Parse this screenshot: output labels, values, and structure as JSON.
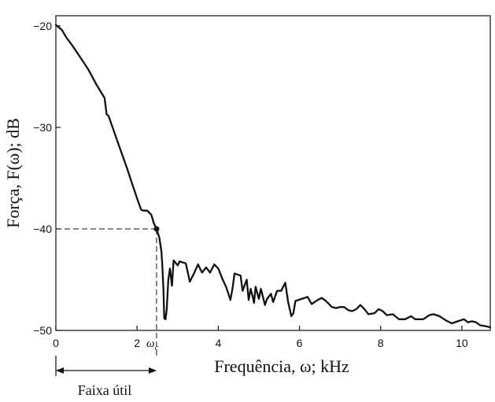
{
  "chart_data": {
    "type": "line",
    "xlabel": "Frequência, ω; kHz",
    "ylabel": "Força, F(ω); dB",
    "xlim": [
      0,
      10.7
    ],
    "ylim": [
      -50,
      -19
    ],
    "x_ticks": [
      0,
      2,
      4,
      6,
      8,
      10
    ],
    "x_tick_labels": [
      "0",
      "2",
      "4",
      "6",
      "8",
      "10"
    ],
    "y_ticks": [
      -20,
      -30,
      -40,
      -50
    ],
    "y_tick_labels": [
      "−20",
      "−30",
      "−40",
      "−50"
    ],
    "grid": false,
    "series": [
      {
        "values": [
          [
            0.0,
            -19.9
          ],
          [
            0.15,
            -20.4
          ],
          [
            0.25,
            -21.1
          ],
          [
            0.4,
            -21.9
          ],
          [
            0.6,
            -23.1
          ],
          [
            0.8,
            -24.3
          ],
          [
            1.0,
            -25.8
          ],
          [
            1.2,
            -27.1
          ],
          [
            1.25,
            -28.7
          ],
          [
            1.3,
            -28.9
          ],
          [
            1.45,
            -30.6
          ],
          [
            1.6,
            -32.3
          ],
          [
            1.75,
            -34.0
          ],
          [
            1.9,
            -35.8
          ],
          [
            2.0,
            -37.0
          ],
          [
            2.1,
            -38.1
          ],
          [
            2.15,
            -38.2
          ],
          [
            2.25,
            -38.2
          ],
          [
            2.35,
            -38.6
          ],
          [
            2.42,
            -39.5
          ],
          [
            2.48,
            -40.0
          ],
          [
            2.55,
            -40.9
          ],
          [
            2.6,
            -42.2
          ],
          [
            2.62,
            -43.5
          ],
          [
            2.65,
            -46.0
          ],
          [
            2.67,
            -48.8
          ],
          [
            2.7,
            -48.9
          ],
          [
            2.73,
            -48.0
          ],
          [
            2.77,
            -45.0
          ],
          [
            2.81,
            -43.9
          ],
          [
            2.86,
            -45.6
          ],
          [
            2.9,
            -43.1
          ],
          [
            3.0,
            -43.6
          ],
          [
            3.05,
            -43.2
          ],
          [
            3.2,
            -43.4
          ],
          [
            3.3,
            -45.2
          ],
          [
            3.4,
            -44.4
          ],
          [
            3.5,
            -43.5
          ],
          [
            3.6,
            -44.3
          ],
          [
            3.7,
            -43.8
          ],
          [
            3.8,
            -44.3
          ],
          [
            3.9,
            -43.5
          ],
          [
            4.0,
            -43.9
          ],
          [
            4.1,
            -44.9
          ],
          [
            4.2,
            -45.8
          ],
          [
            4.3,
            -47.0
          ],
          [
            4.35,
            -45.9
          ],
          [
            4.4,
            -44.4
          ],
          [
            4.55,
            -44.6
          ],
          [
            4.6,
            -46.1
          ],
          [
            4.7,
            -45.0
          ],
          [
            4.75,
            -47.0
          ],
          [
            4.8,
            -45.9
          ],
          [
            4.85,
            -46.7
          ],
          [
            4.88,
            -47.3
          ],
          [
            4.92,
            -45.7
          ],
          [
            5.0,
            -46.9
          ],
          [
            5.05,
            -45.9
          ],
          [
            5.15,
            -47.5
          ],
          [
            5.2,
            -46.9
          ],
          [
            5.3,
            -46.4
          ],
          [
            5.35,
            -47.2
          ],
          [
            5.45,
            -46.1
          ],
          [
            5.55,
            -46.1
          ],
          [
            5.65,
            -45.3
          ],
          [
            5.72,
            -47.2
          ],
          [
            5.8,
            -48.6
          ],
          [
            5.85,
            -48.3
          ],
          [
            5.9,
            -47.1
          ],
          [
            6.05,
            -46.9
          ],
          [
            6.2,
            -46.7
          ],
          [
            6.3,
            -47.4
          ],
          [
            6.45,
            -47.0
          ],
          [
            6.55,
            -46.8
          ],
          [
            6.65,
            -47.1
          ],
          [
            6.8,
            -47.7
          ],
          [
            6.9,
            -47.8
          ],
          [
            7.0,
            -47.7
          ],
          [
            7.1,
            -47.7
          ],
          [
            7.2,
            -48.0
          ],
          [
            7.3,
            -48.1
          ],
          [
            7.4,
            -47.9
          ],
          [
            7.5,
            -47.5
          ],
          [
            7.6,
            -47.9
          ],
          [
            7.7,
            -48.4
          ],
          [
            7.85,
            -48.3
          ],
          [
            7.95,
            -47.9
          ],
          [
            8.05,
            -48.1
          ],
          [
            8.15,
            -48.5
          ],
          [
            8.3,
            -48.4
          ],
          [
            8.45,
            -48.9
          ],
          [
            8.6,
            -48.9
          ],
          [
            8.75,
            -48.6
          ],
          [
            8.85,
            -48.9
          ],
          [
            9.05,
            -48.9
          ],
          [
            9.2,
            -48.5
          ],
          [
            9.3,
            -48.4
          ],
          [
            9.45,
            -48.6
          ],
          [
            9.6,
            -49.0
          ],
          [
            9.75,
            -49.3
          ],
          [
            9.9,
            -49.1
          ],
          [
            10.05,
            -48.9
          ],
          [
            10.15,
            -49.2
          ],
          [
            10.25,
            -49.1
          ],
          [
            10.35,
            -49.2
          ],
          [
            10.45,
            -49.5
          ],
          [
            10.6,
            -49.6
          ],
          [
            10.7,
            -49.7
          ]
        ]
      }
    ],
    "annotations": {
      "cutoff_point": {
        "x": 2.48,
        "y": -40
      },
      "cutoff_label": "ω",
      "cutoff_subscript": "c",
      "band_label": "Faixa útil",
      "band_range": [
        0,
        2.48
      ]
    }
  }
}
